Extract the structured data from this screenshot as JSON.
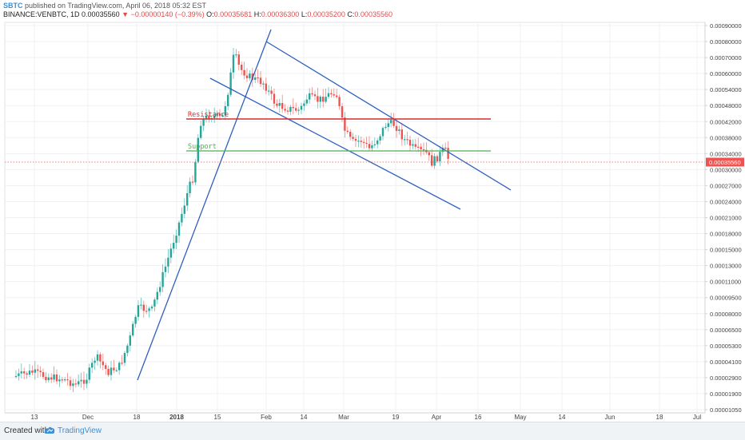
{
  "header": {
    "publisher_user": "SBTC",
    "published_text": "published on TradingView.com, April 06, 2018 05:32 EST",
    "symbol": "BINANCE:VENBTC, 1D",
    "last": "0.00035560",
    "change": "−0.00000140 (−0.39%)",
    "o_label": "O:",
    "o": "0.00035681",
    "h_label": "H:",
    "h": "0.00036300",
    "l_label": "L:",
    "l": "0.00035200",
    "c_label": "C:",
    "c": "0.00035560"
  },
  "colors": {
    "up": "#26a69a",
    "down": "#ef5350",
    "trendline": "#2e5fbf",
    "resistance": "#d32f2f",
    "support": "#4caf50",
    "price_badge": "#ef5350"
  },
  "chart_data": {
    "type": "candlestick",
    "x_ticks": [
      "13",
      "Dec",
      "18",
      "2018",
      "15",
      "Feb",
      "14",
      "Mar",
      "19",
      "Apr",
      "16",
      "May",
      "14",
      "Jun",
      "18",
      "Jul"
    ],
    "y_ticks": [
      "0.00090000",
      "0.00080000",
      "0.00070000",
      "0.00060000",
      "0.00054000",
      "0.00048000",
      "0.00042000",
      "0.00038000",
      "0.00034000",
      "0.00030000",
      "0.00027000",
      "0.00024000",
      "0.00021000",
      "0.00018000",
      "0.00015000",
      "0.00013000",
      "0.00011000",
      "0.00009500",
      "0.00008000",
      "0.00006500",
      "0.00005300",
      "0.00004100",
      "0.00002900",
      "0.00001900",
      "0.00001050"
    ],
    "y_scale": "log",
    "last_price_label": "0.00035560",
    "annotations": [
      {
        "label": "Resistance",
        "value": 0.00048
      },
      {
        "label": "Support",
        "value": 0.000385
      }
    ],
    "close_path": [
      2.7e-05,
      3e-05,
      3.3e-05,
      2.9e-05,
      2.4e-05,
      2.7e-05,
      3.1e-05,
      5e-05,
      3.4e-05,
      3.9e-05,
      9e-05,
      0.00013,
      0.00019,
      0.00026,
      0.00032,
      0.00046,
      0.0004,
      0.00078,
      0.0007,
      0.00059,
      0.00053,
      0.00056,
      0.00058,
      0.00046,
      0.00042,
      0.00046,
      0.00039,
      0.00037,
      0.00034,
      0.000356
    ]
  }
}
